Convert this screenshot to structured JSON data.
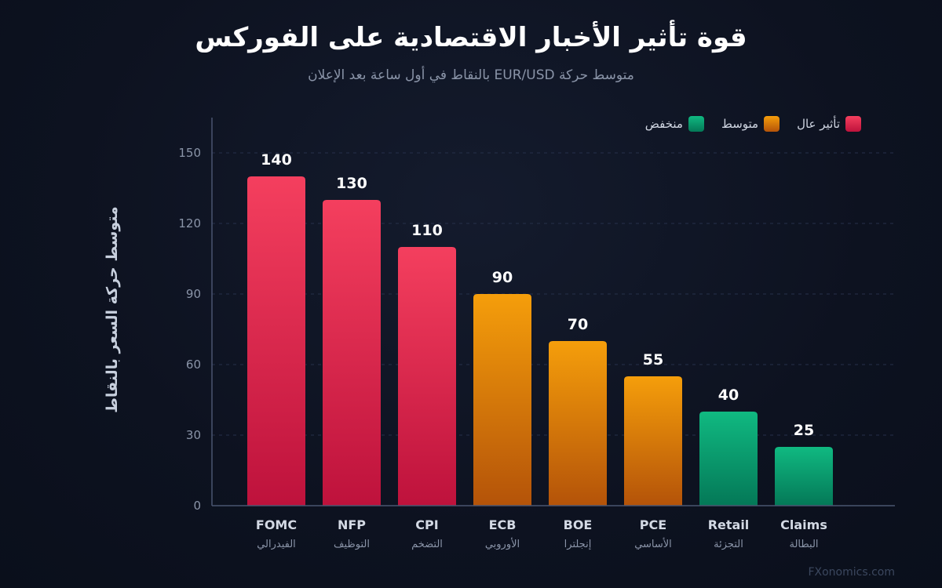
{
  "title": "قوة تأثير الأخبار الاقتصادية على الفوركس",
  "subtitle": "متوسط حركة EUR/USD بالنقاط في أول ساعة بعد الإعلان",
  "watermark": "FXonomics.com",
  "legend": [
    {
      "label": "منخفض",
      "color": "#10b981"
    },
    {
      "label": "متوسط",
      "color": "#f59e0b"
    },
    {
      "label": "تأثير عال",
      "color": "#e11d48"
    }
  ],
  "colors": {
    "high_top": "#f43f5e",
    "high_bottom": "#be123c",
    "medium_top": "#f59e0b",
    "medium_bottom": "#b45309",
    "low_top": "#10b981",
    "low_bottom": "#047857"
  },
  "chart_data": {
    "type": "bar",
    "title": "قوة تأثير الأخبار الاقتصادية على الفوركس",
    "subtitle": "متوسط حركة EUR/USD بالنقاط في أول ساعة بعد الإعلان",
    "xlabel": "",
    "ylabel": "متوسط حركة السعر بالنقاط",
    "ylim": [
      0,
      165
    ],
    "yticks": [
      0,
      30,
      60,
      90,
      120,
      150
    ],
    "grid": true,
    "legend_position": "top-right",
    "categories": [
      "FOMC",
      "NFP",
      "CPI",
      "ECB",
      "BOE",
      "PCE",
      "Retail",
      "Claims"
    ],
    "sublabels": [
      "الفيدرالي",
      "التوظيف",
      "التضخم",
      "الأوروبي",
      "إنجلترا",
      "الأساسي",
      "التجزئة",
      "البطالة"
    ],
    "values": [
      140,
      130,
      110,
      90,
      70,
      55,
      40,
      25
    ],
    "impact": [
      "high",
      "high",
      "high",
      "medium",
      "medium",
      "medium",
      "low",
      "low"
    ]
  }
}
